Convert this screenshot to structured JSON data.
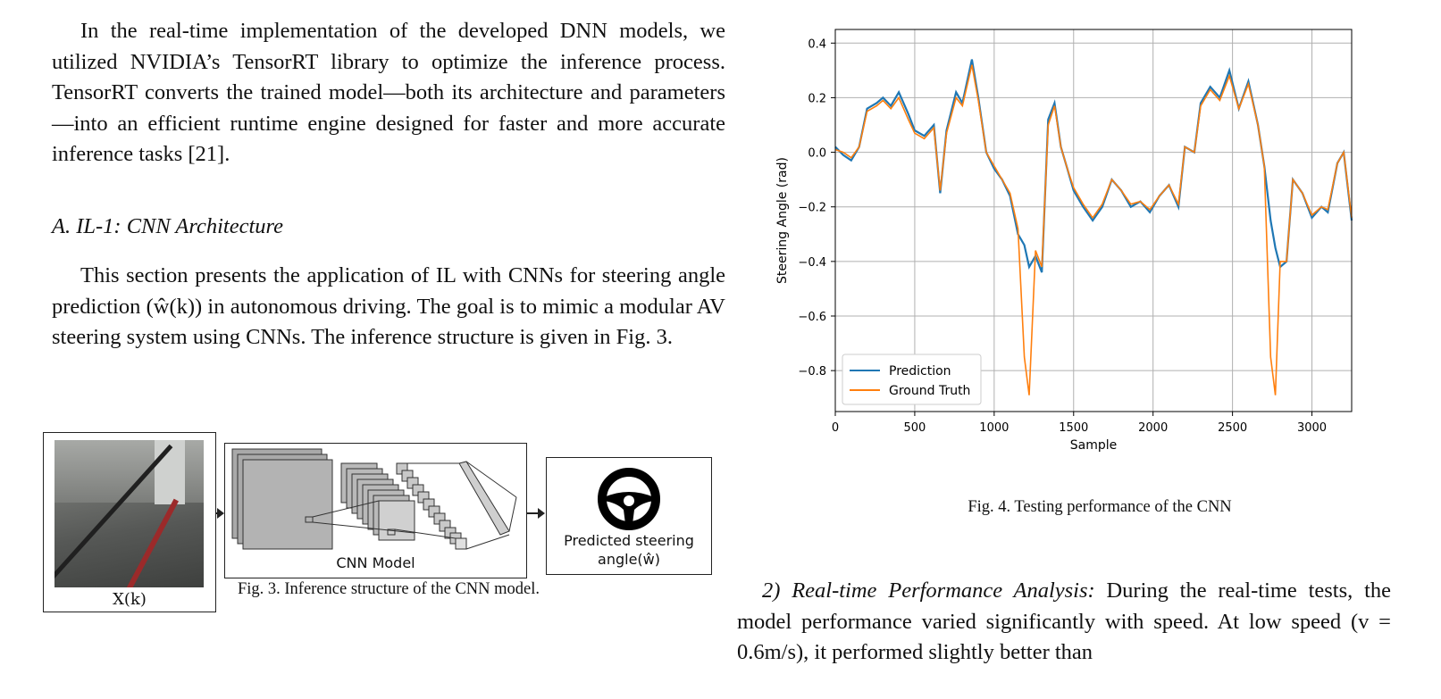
{
  "left_col": {
    "para1": "In the real-time implementation of the developed DNN models, we utilized NVIDIA’s TensorRT library to optimize the inference process. TensorRT converts the trained model—both its architecture and parameters—into an efficient runtime engine designed for faster and more accurate inference tasks [21].",
    "section_heading": "A. IL-1: CNN Architecture",
    "para2": "This section presents the application of IL with CNNs for steering angle prediction (ŵ(k)) in autonomous driving. The goal is to mimic a modular AV steering system using CNNs. The inference structure is given in Fig.  3."
  },
  "fig3": {
    "input_label": "X(k)",
    "cnn_label": "CNN Model",
    "output_label_line1": "Predicted steering",
    "output_label_line2": "angle(ŵ)",
    "caption": "Fig. 3.  Inference structure of the CNN model."
  },
  "fig4": {
    "caption": "Fig. 4.  Testing performance of the CNN"
  },
  "right_col": {
    "para_heading": "2) Real-time Performance Analysis:",
    "para_body": " During the real-time tests, the model performance varied significantly with speed. At low speed (v = 0.6m/s), it performed slightly better than"
  },
  "chart_data": {
    "type": "line",
    "xlabel": "Sample",
    "ylabel": "Steering Angle (rad)",
    "xlim": [
      0,
      3250
    ],
    "ylim": [
      -0.95,
      0.45
    ],
    "xticks": [
      0,
      500,
      1000,
      1500,
      2000,
      2500,
      3000
    ],
    "yticks": [
      0.4,
      0.2,
      0.0,
      -0.2,
      -0.4,
      -0.6,
      -0.8
    ],
    "ytick_labels": [
      "0.4",
      "0.2",
      "0.0",
      "−0.2",
      "−0.4",
      "−0.6",
      "−0.8"
    ],
    "grid": true,
    "legend": "lower-left",
    "colors": {
      "prediction": "#1f77b4",
      "ground_truth": "#ff7f0e"
    },
    "series": [
      {
        "name": "Prediction",
        "x": [
          0,
          50,
          100,
          150,
          200,
          260,
          300,
          350,
          400,
          460,
          500,
          560,
          620,
          660,
          700,
          760,
          800,
          860,
          900,
          950,
          1000,
          1050,
          1100,
          1150,
          1190,
          1220,
          1260,
          1300,
          1340,
          1380,
          1420,
          1460,
          1500,
          1560,
          1620,
          1680,
          1740,
          1800,
          1860,
          1920,
          1980,
          2040,
          2100,
          2160,
          2200,
          2260,
          2300,
          2360,
          2420,
          2480,
          2540,
          2600,
          2660,
          2700,
          2740,
          2770,
          2800,
          2840,
          2880,
          2940,
          3000,
          3060,
          3100,
          3160,
          3200,
          3250
        ],
        "y": [
          0.02,
          -0.01,
          -0.03,
          0.02,
          0.16,
          0.18,
          0.2,
          0.17,
          0.22,
          0.14,
          0.08,
          0.06,
          0.1,
          -0.15,
          0.08,
          0.22,
          0.18,
          0.34,
          0.2,
          0.0,
          -0.06,
          -0.1,
          -0.16,
          -0.3,
          -0.34,
          -0.42,
          -0.38,
          -0.44,
          0.12,
          0.18,
          0.02,
          -0.06,
          -0.14,
          -0.2,
          -0.25,
          -0.2,
          -0.1,
          -0.14,
          -0.2,
          -0.18,
          -0.22,
          -0.16,
          -0.12,
          -0.2,
          0.02,
          0.0,
          0.18,
          0.24,
          0.2,
          0.3,
          0.16,
          0.26,
          0.1,
          -0.05,
          -0.25,
          -0.35,
          -0.42,
          -0.4,
          -0.1,
          -0.15,
          -0.24,
          -0.2,
          -0.22,
          -0.04,
          0.0,
          -0.25
        ]
      },
      {
        "name": "Ground Truth",
        "x": [
          0,
          50,
          100,
          150,
          200,
          260,
          300,
          350,
          400,
          460,
          500,
          560,
          620,
          660,
          700,
          760,
          800,
          860,
          900,
          950,
          1000,
          1050,
          1100,
          1150,
          1190,
          1220,
          1260,
          1300,
          1340,
          1380,
          1420,
          1460,
          1500,
          1560,
          1620,
          1680,
          1740,
          1800,
          1860,
          1920,
          1980,
          2040,
          2100,
          2160,
          2200,
          2260,
          2300,
          2360,
          2420,
          2480,
          2540,
          2600,
          2660,
          2700,
          2740,
          2770,
          2800,
          2840,
          2880,
          2940,
          3000,
          3060,
          3100,
          3160,
          3200,
          3250
        ],
        "y": [
          0.01,
          0.0,
          -0.02,
          0.02,
          0.15,
          0.17,
          0.19,
          0.16,
          0.2,
          0.12,
          0.07,
          0.05,
          0.09,
          -0.14,
          0.07,
          0.2,
          0.17,
          0.32,
          0.19,
          0.0,
          -0.05,
          -0.1,
          -0.15,
          -0.28,
          -0.75,
          -0.89,
          -0.36,
          -0.42,
          0.1,
          0.17,
          0.02,
          -0.06,
          -0.13,
          -0.19,
          -0.24,
          -0.19,
          -0.1,
          -0.14,
          -0.19,
          -0.18,
          -0.21,
          -0.16,
          -0.12,
          -0.19,
          0.02,
          0.0,
          0.17,
          0.23,
          0.19,
          0.28,
          0.16,
          0.25,
          0.1,
          -0.05,
          -0.75,
          -0.89,
          -0.4,
          -0.4,
          -0.1,
          -0.15,
          -0.23,
          -0.2,
          -0.21,
          -0.04,
          0.0,
          -0.24
        ]
      }
    ]
  }
}
